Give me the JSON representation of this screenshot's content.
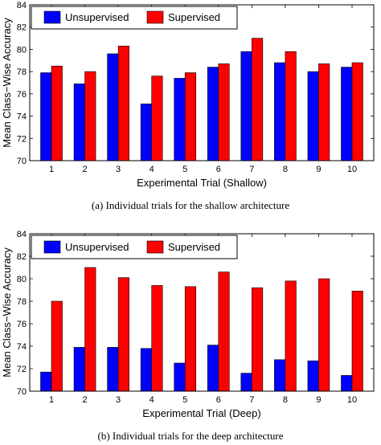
{
  "colors": {
    "unsupervised": "#0000ff",
    "supervised": "#ff0000"
  },
  "chart_data": [
    {
      "type": "bar",
      "xlabel": "Experimental Trial (Shallow)",
      "ylabel": "Mean Class−Wise Accuracy",
      "caption": "(a)  Individual trials for the shallow architecture",
      "categories": [
        "1",
        "2",
        "3",
        "4",
        "5",
        "6",
        "7",
        "8",
        "9",
        "10"
      ],
      "ylim": [
        70,
        84
      ],
      "yticks": [
        "70",
        "72",
        "74",
        "76",
        "78",
        "80",
        "82",
        "84"
      ],
      "legend_position": "top-left",
      "series": [
        {
          "name": "Unsupervised",
          "values": [
            77.9,
            76.9,
            79.6,
            75.1,
            77.4,
            78.4,
            79.8,
            78.8,
            78.0,
            78.4
          ]
        },
        {
          "name": "Supervised",
          "values": [
            78.5,
            78.0,
            80.3,
            77.6,
            77.9,
            78.7,
            81.0,
            79.8,
            78.7,
            78.8
          ]
        }
      ]
    },
    {
      "type": "bar",
      "xlabel": "Experimental Trial (Deep)",
      "ylabel": "Mean Class−Wise Accuracy",
      "caption": "(b)  Individual trials for the deep architecture",
      "categories": [
        "1",
        "2",
        "3",
        "4",
        "5",
        "6",
        "7",
        "8",
        "9",
        "10"
      ],
      "ylim": [
        70,
        84
      ],
      "yticks": [
        "70",
        "72",
        "74",
        "76",
        "78",
        "80",
        "82",
        "84"
      ],
      "legend_position": "top-left",
      "series": [
        {
          "name": "Unsupervised",
          "values": [
            71.7,
            73.9,
            73.9,
            73.8,
            72.5,
            74.1,
            71.6,
            72.8,
            72.7,
            71.4
          ]
        },
        {
          "name": "Supervised",
          "values": [
            78.0,
            81.0,
            80.1,
            79.4,
            79.3,
            80.6,
            79.2,
            79.8,
            80.0,
            78.9
          ]
        }
      ]
    }
  ]
}
